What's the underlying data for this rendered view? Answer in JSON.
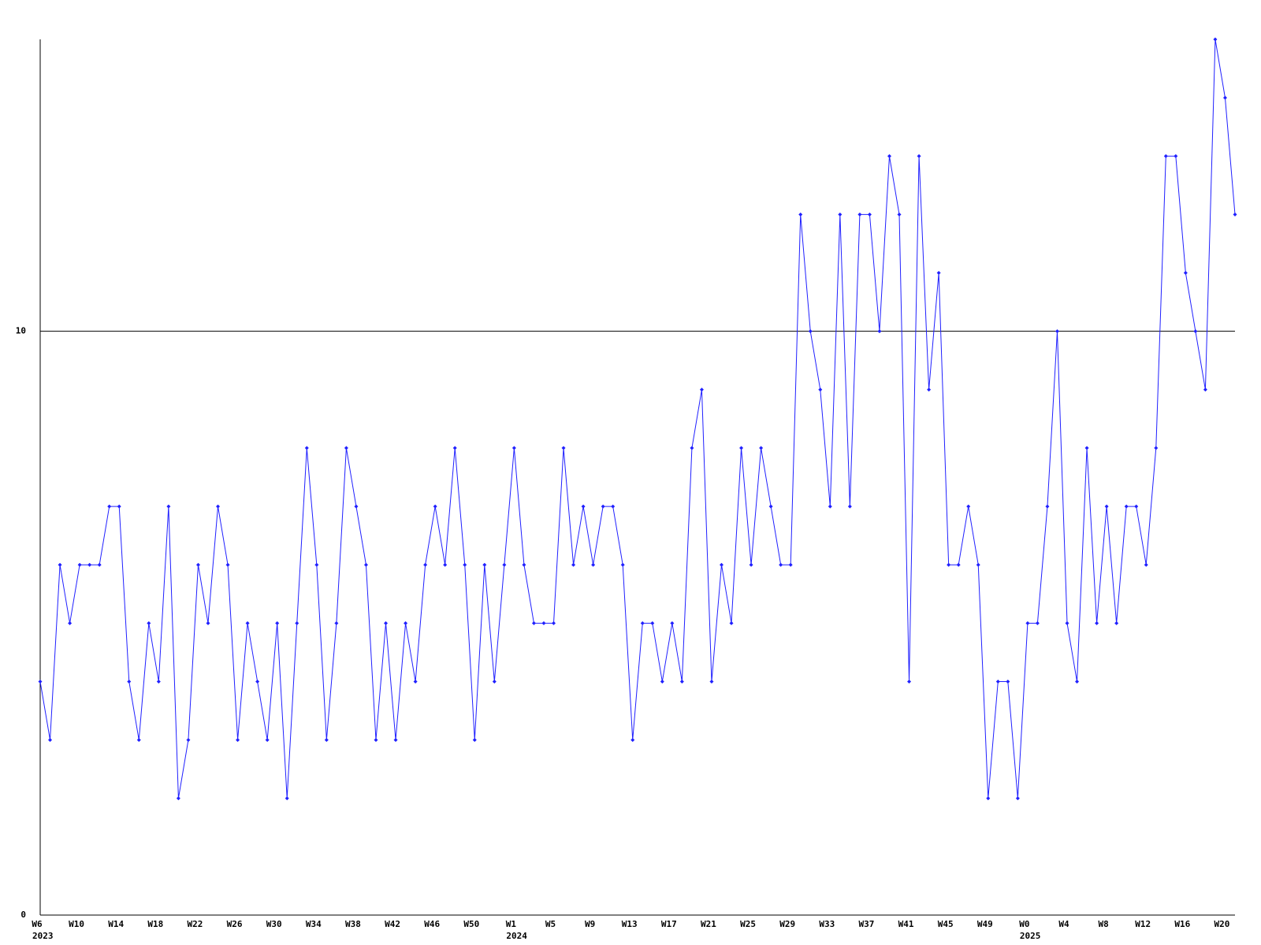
{
  "chart_data": {
    "type": "line",
    "categories": [
      "W6",
      null,
      null,
      null,
      "W10",
      null,
      null,
      null,
      "W14",
      null,
      null,
      null,
      "W18",
      null,
      null,
      null,
      "W22",
      null,
      null,
      null,
      "W26",
      null,
      null,
      null,
      "W30",
      null,
      null,
      null,
      "W34",
      null,
      null,
      null,
      "W38",
      null,
      null,
      null,
      "W42",
      null,
      null,
      null,
      "W46",
      null,
      null,
      null,
      "W50",
      null,
      null,
      null,
      "W1",
      null,
      null,
      null,
      "W5",
      null,
      null,
      null,
      "W9",
      null,
      null,
      null,
      "W13",
      null,
      null,
      null,
      "W17",
      null,
      null,
      null,
      "W21",
      null,
      null,
      null,
      "W25",
      null,
      null,
      null,
      "W29",
      null,
      null,
      null,
      "W33",
      null,
      null,
      null,
      "W37",
      null,
      null,
      null,
      "W41",
      null,
      null,
      null,
      "W45",
      null,
      null,
      null,
      "W49",
      null,
      null,
      null,
      "W0",
      null,
      null,
      null,
      "W4",
      null,
      null,
      null,
      "W8",
      null,
      null,
      null,
      "W12",
      null,
      null,
      null,
      "W16",
      null,
      null,
      null,
      "W20",
      null
    ],
    "year_labels": [
      "2023",
      null,
      null,
      null,
      null,
      null,
      null,
      null,
      null,
      null,
      null,
      null,
      null,
      null,
      null,
      null,
      null,
      null,
      null,
      null,
      null,
      null,
      null,
      null,
      null,
      null,
      null,
      null,
      null,
      null,
      null,
      null,
      null,
      null,
      null,
      null,
      null,
      null,
      null,
      null,
      null,
      null,
      null,
      null,
      null,
      null,
      null,
      null,
      "2024",
      null,
      null,
      null,
      null,
      null,
      null,
      null,
      null,
      null,
      null,
      null,
      null,
      null,
      null,
      null,
      null,
      null,
      null,
      null,
      null,
      null,
      null,
      null,
      null,
      null,
      null,
      null,
      null,
      null,
      null,
      null,
      null,
      null,
      null,
      null,
      null,
      null,
      null,
      null,
      null,
      null,
      null,
      null,
      null,
      null,
      null,
      null,
      null,
      null,
      null,
      null,
      "2025",
      null,
      null,
      null,
      null,
      null,
      null,
      null,
      null,
      null,
      null,
      null,
      null,
      null,
      null,
      null,
      null,
      null,
      null,
      null,
      null,
      null
    ],
    "values": [
      4,
      3,
      6,
      5,
      6,
      6,
      6,
      7,
      7,
      4,
      3,
      5,
      4,
      7,
      2,
      3,
      6,
      5,
      7,
      6,
      3,
      5,
      4,
      3,
      5,
      2,
      5,
      8,
      6,
      3,
      5,
      8,
      7,
      6,
      3,
      5,
      3,
      5,
      4,
      6,
      7,
      6,
      8,
      6,
      3,
      6,
      4,
      6,
      8,
      6,
      5,
      5,
      5,
      8,
      6,
      7,
      6,
      7,
      7,
      6,
      3,
      5,
      5,
      4,
      5,
      4,
      8,
      9,
      4,
      6,
      5,
      8,
      6,
      8,
      7,
      6,
      6,
      12,
      10,
      9,
      7,
      12,
      7,
      12,
      12,
      10,
      13,
      12,
      4,
      13,
      9,
      11,
      6,
      6,
      7,
      6,
      2,
      4,
      4,
      2,
      5,
      5,
      7,
      10,
      5,
      4,
      8,
      5,
      7,
      5,
      7,
      7,
      6,
      8,
      13,
      13,
      11,
      10,
      9,
      15,
      14,
      12
    ],
    "color": "#2020ff",
    "ylim": [
      0,
      15
    ],
    "yticks": [
      0,
      10
    ],
    "grid": true
  }
}
